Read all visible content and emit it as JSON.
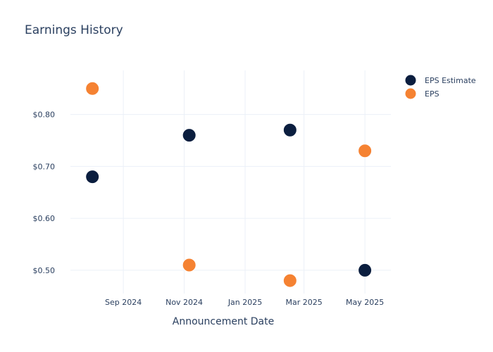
{
  "chart_data": {
    "type": "scatter",
    "title": "Earnings History",
    "xlabel": "Announcement Date",
    "ylabel": "",
    "x_ticks": [
      "Sep 2024",
      "Nov 2024",
      "Jan 2025",
      "Mar 2025",
      "May 2025"
    ],
    "y_ticks": [
      "$0.50",
      "$0.60",
      "$0.70",
      "$0.80"
    ],
    "ylim": [
      0.455,
      0.885
    ],
    "xlim": [
      "2024-07-10",
      "2025-05-27"
    ],
    "legend": {
      "position": "top-right"
    },
    "grid": true,
    "series": [
      {
        "name": "EPS Estimate",
        "color": "#0b1e3f",
        "points": [
          {
            "x": "2024-08-01",
            "y": 0.68
          },
          {
            "x": "2024-11-06",
            "y": 0.76
          },
          {
            "x": "2025-02-15",
            "y": 0.77
          },
          {
            "x": "2025-05-01",
            "y": 0.5
          }
        ]
      },
      {
        "name": "EPS",
        "color": "#f58232",
        "points": [
          {
            "x": "2024-08-01",
            "y": 0.85
          },
          {
            "x": "2024-11-06",
            "y": 0.51
          },
          {
            "x": "2025-02-15",
            "y": 0.48
          },
          {
            "x": "2025-05-01",
            "y": 0.73
          }
        ]
      }
    ]
  }
}
